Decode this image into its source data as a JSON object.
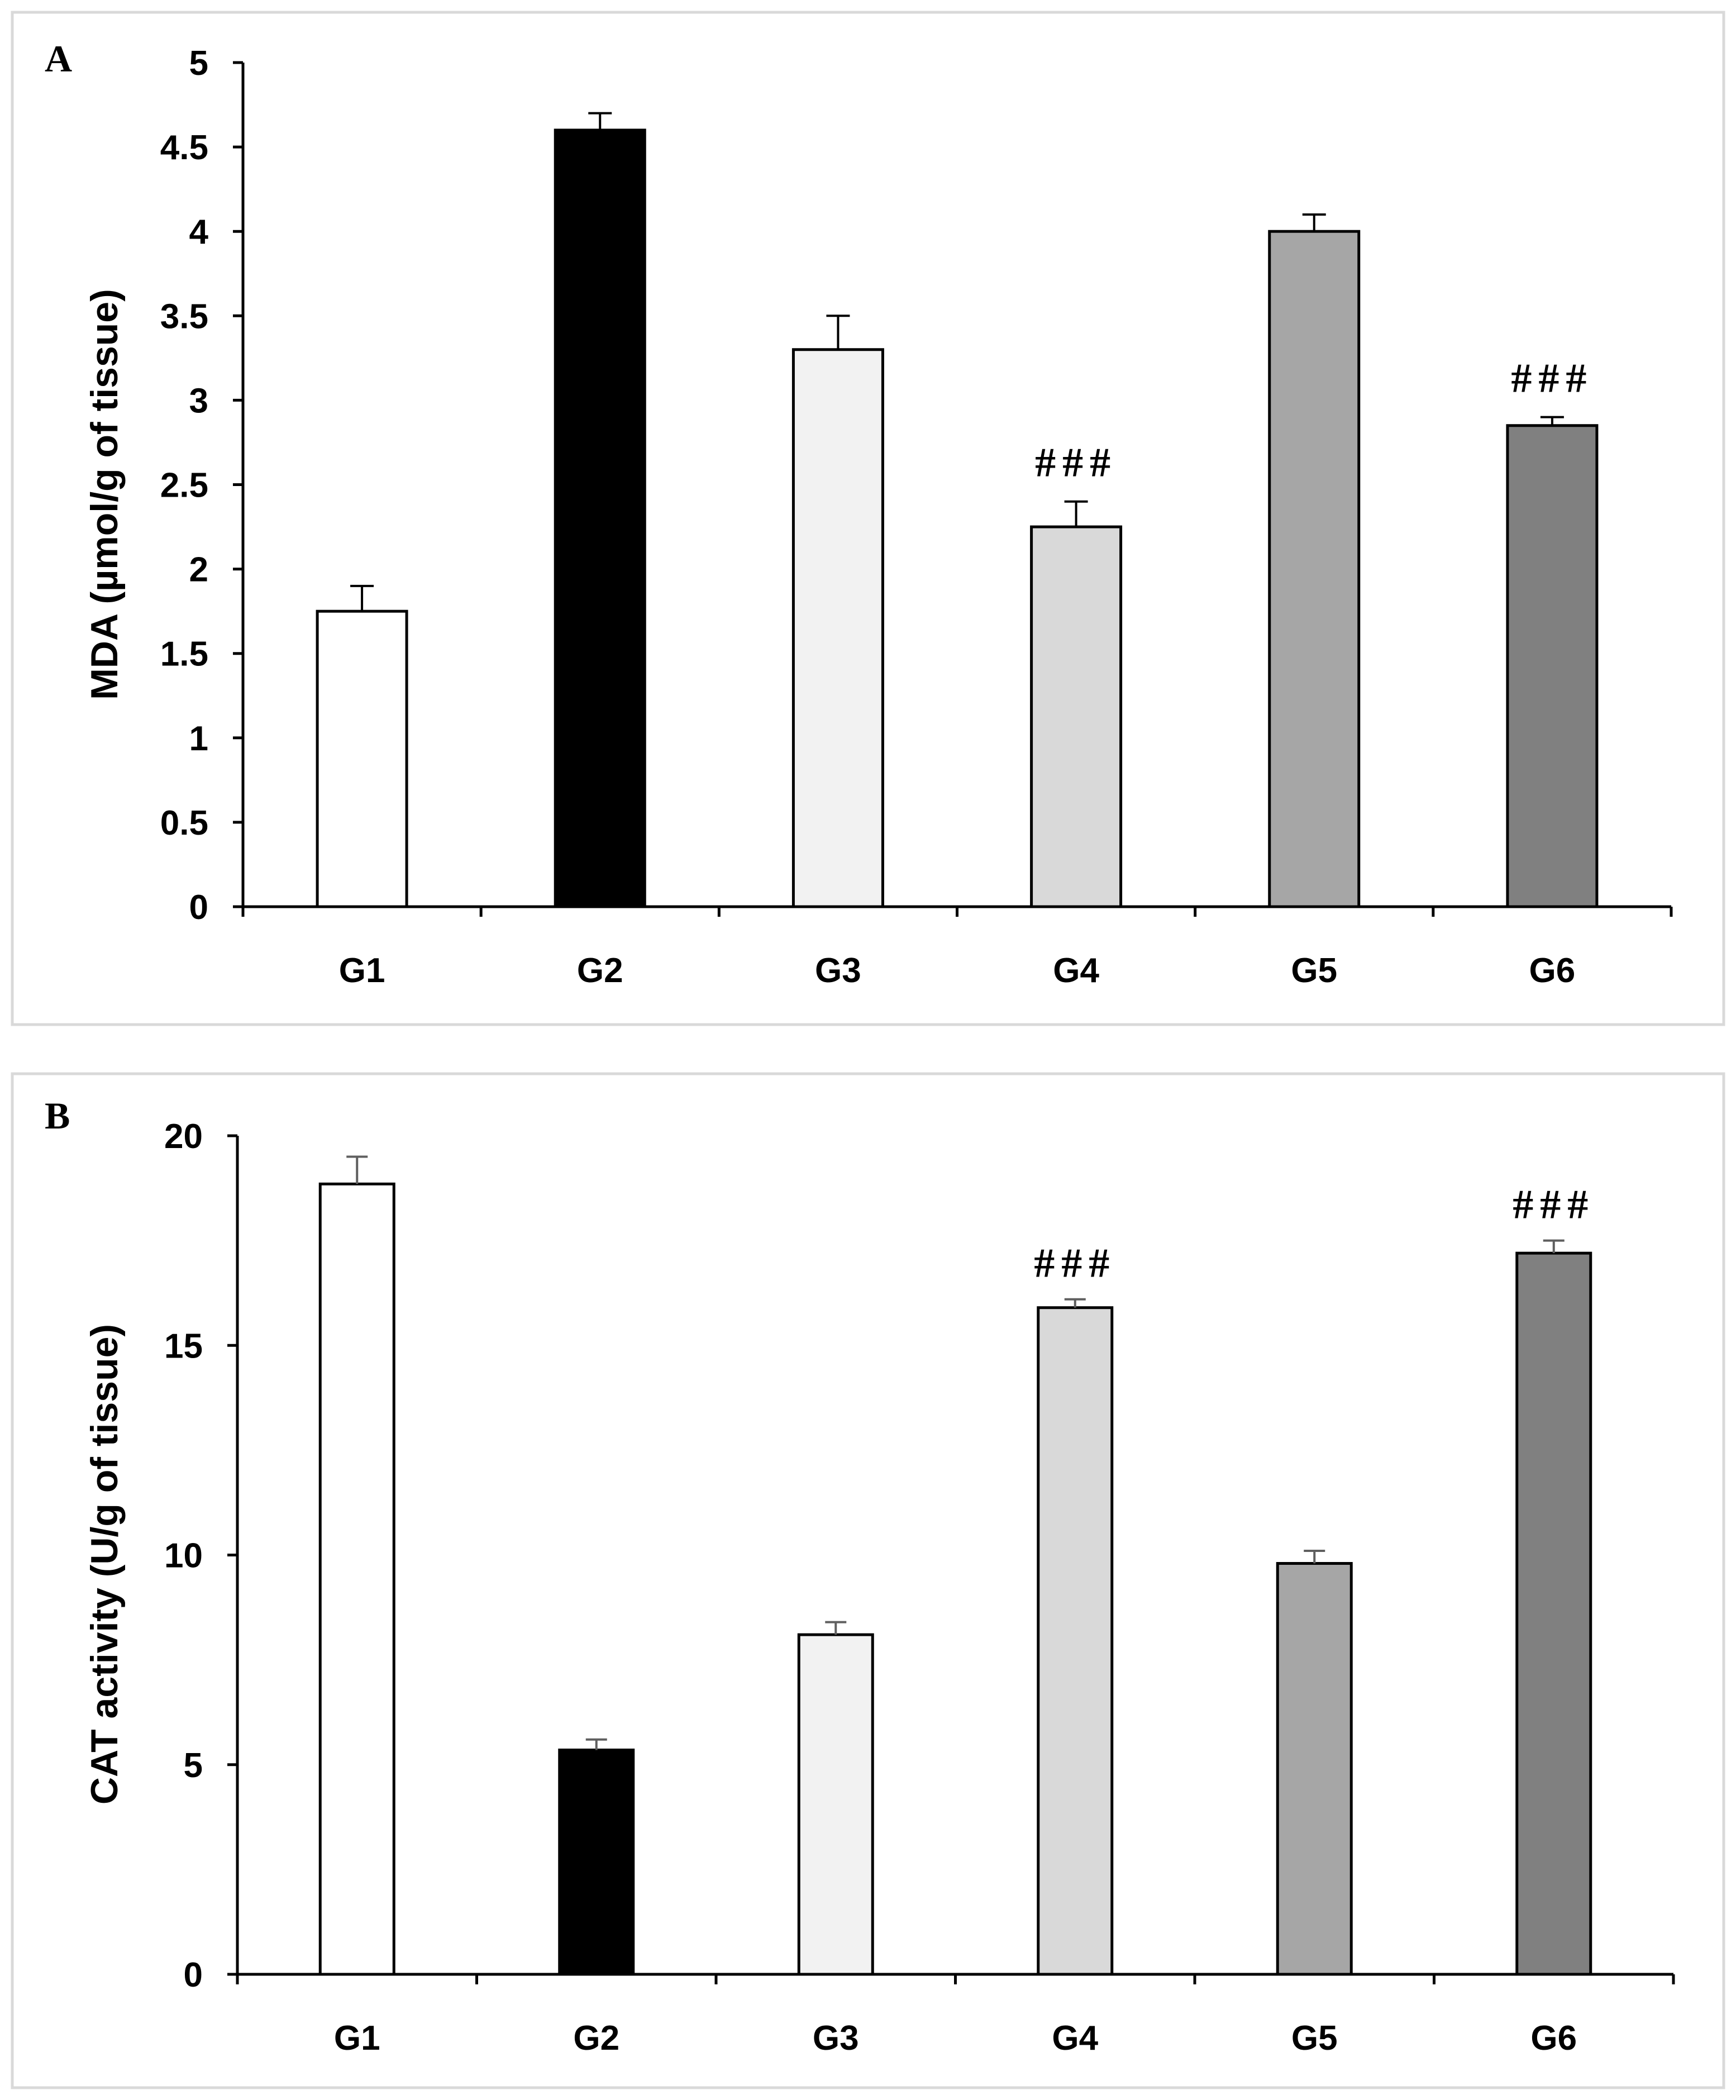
{
  "chart_data": [
    {
      "panel": "A",
      "type": "bar",
      "title": "",
      "xlabel": "",
      "ylabel": "MDA (µmol/g of tissue)",
      "categories": [
        "G1",
        "G2",
        "G3",
        "G4",
        "G5",
        "G6"
      ],
      "values": [
        1.75,
        4.6,
        3.3,
        2.25,
        4.0,
        2.85
      ],
      "errors": [
        0.15,
        0.1,
        0.2,
        0.15,
        0.1,
        0.05
      ],
      "significance": [
        "",
        "",
        "",
        "###",
        "",
        "###"
      ],
      "bar_colors": [
        "#ffffff",
        "#000000",
        "#f2f2f2",
        "#d9d9d9",
        "#a6a6a6",
        "#808080"
      ],
      "ylim": [
        0,
        5
      ],
      "yticks": [
        0,
        0.5,
        1,
        1.5,
        2,
        2.5,
        3,
        3.5,
        4,
        4.5,
        5
      ],
      "ytick_labels": [
        "0",
        "0.5",
        "1",
        "1.5",
        "2",
        "2.5",
        "3",
        "3.5",
        "4",
        "4.5",
        "5"
      ],
      "grid": false,
      "legend": "none"
    },
    {
      "panel": "B",
      "type": "bar",
      "title": "",
      "xlabel": "",
      "ylabel": "CAT activity (U/g of tissue)",
      "categories": [
        "G1",
        "G2",
        "G3",
        "G4",
        "G5",
        "G6"
      ],
      "values": [
        18.85,
        5.35,
        8.1,
        15.9,
        9.8,
        17.2
      ],
      "errors": [
        0.65,
        0.25,
        0.3,
        0.2,
        0.3,
        0.3
      ],
      "significance": [
        "",
        "",
        "",
        "###",
        "",
        "###"
      ],
      "bar_colors": [
        "#ffffff",
        "#000000",
        "#f2f2f2",
        "#d9d9d9",
        "#a6a6a6",
        "#808080"
      ],
      "ylim": [
        0,
        20
      ],
      "yticks": [
        0,
        5,
        10,
        15,
        20
      ],
      "ytick_labels": [
        "0",
        "5",
        "10",
        "15",
        "20"
      ],
      "grid": false,
      "legend": "none"
    }
  ]
}
